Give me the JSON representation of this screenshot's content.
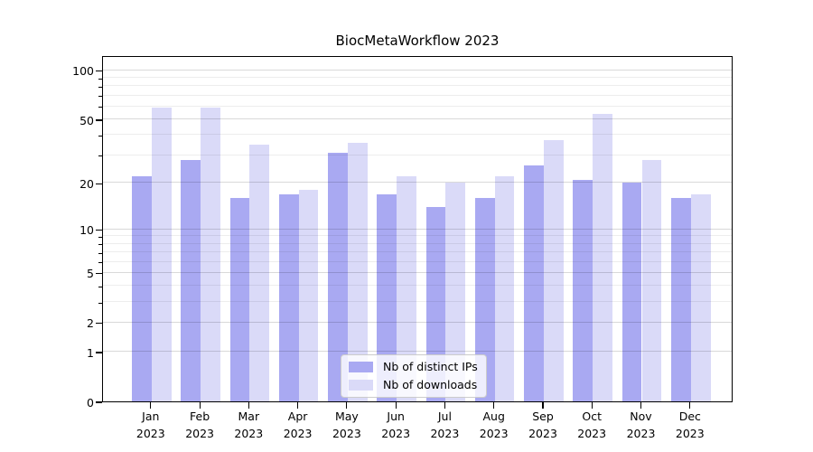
{
  "title": "BiocMetaWorkflow 2023",
  "chart_data": {
    "type": "bar",
    "title": "BiocMetaWorkflow 2023",
    "categories": [
      "Jan",
      "Feb",
      "Mar",
      "Apr",
      "May",
      "Jun",
      "Jul",
      "Aug",
      "Sep",
      "Oct",
      "Nov",
      "Dec"
    ],
    "year_label": "2023",
    "series": [
      {
        "name": "Nb of distinct IPs",
        "color": "#a9a9f2",
        "values": [
          22,
          28,
          16,
          17,
          31,
          17,
          14,
          16,
          26,
          21,
          20,
          16
        ]
      },
      {
        "name": "Nb of downloads",
        "color": "#dadaf8",
        "values": [
          59,
          59,
          35,
          18,
          36,
          22,
          20,
          22,
          37,
          54,
          28,
          17
        ]
      }
    ],
    "yscale": "log1p",
    "ylim": [
      0,
      124
    ],
    "y_major_ticks": [
      100,
      50,
      20,
      10,
      5,
      2,
      1,
      0
    ],
    "y_minor_ticks": [
      90,
      80,
      70,
      60,
      40,
      30,
      9,
      8,
      7,
      6,
      4,
      3
    ],
    "grid": true,
    "legend_position": "bottom-center"
  },
  "colors": {
    "grid_major": "#d9d9d9",
    "grid_minor": "#ededed",
    "spine": "#000000",
    "background": "#ffffff"
  }
}
